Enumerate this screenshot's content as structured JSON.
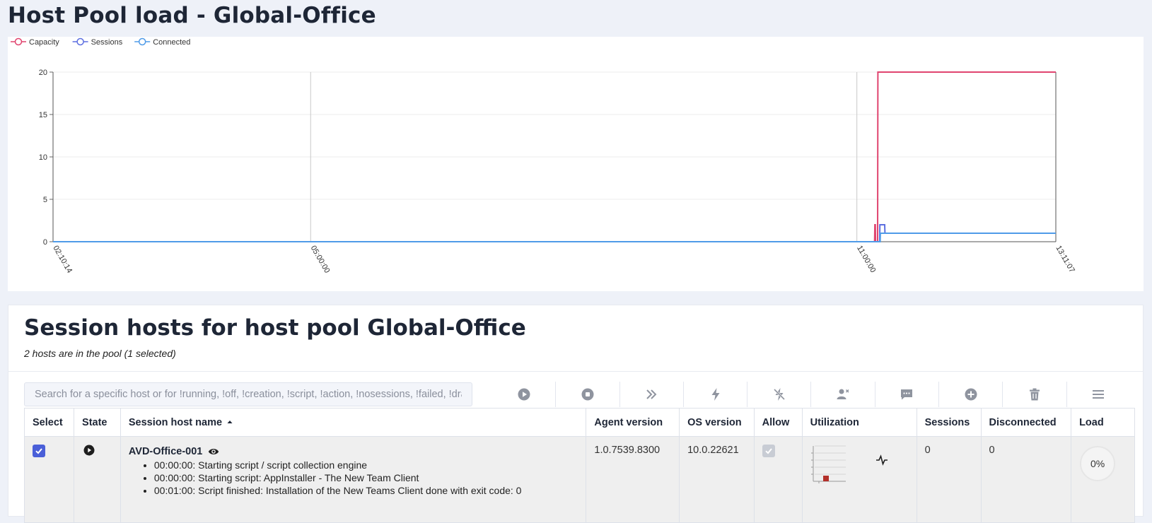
{
  "page": {
    "title": "Host Pool load - Global-Office"
  },
  "chart_data": {
    "type": "line",
    "legend": [
      {
        "name": "Capacity",
        "color": "#e0446f"
      },
      {
        "name": "Sessions",
        "color": "#5d6fe0"
      },
      {
        "name": "Connected",
        "color": "#4f9be8"
      }
    ],
    "legend_position": "top-left",
    "x_ticks": [
      "02:10:14",
      "05:00:00",
      "11:00:00",
      "13:11:07"
    ],
    "y_ticks": [
      "0",
      "5",
      "10",
      "15",
      "20"
    ],
    "ylim": [
      0,
      20
    ],
    "xlim_seconds": [
      7814,
      47467
    ],
    "grid": true,
    "series": [
      {
        "name": "Capacity",
        "color": "#e0446f",
        "points": [
          [
            7814,
            0
          ],
          [
            40300,
            0
          ],
          [
            40310,
            2
          ],
          [
            40330,
            2
          ],
          [
            40340,
            0
          ],
          [
            40420,
            0
          ],
          [
            40430,
            20
          ],
          [
            47467,
            20
          ]
        ]
      },
      {
        "name": "Sessions",
        "color": "#5d6fe0",
        "points": [
          [
            7814,
            0
          ],
          [
            40500,
            0
          ],
          [
            40510,
            2
          ],
          [
            40700,
            2
          ],
          [
            40710,
            1
          ],
          [
            47467,
            1
          ]
        ]
      },
      {
        "name": "Connected",
        "color": "#4f9be8",
        "points": [
          [
            7814,
            0
          ],
          [
            40520,
            0
          ],
          [
            40530,
            1
          ],
          [
            47467,
            1
          ]
        ]
      }
    ]
  },
  "hosts_panel": {
    "title": "Session hosts for host pool Global-Office",
    "subtitle": "2 hosts are in the pool (1 selected)",
    "search_placeholder": "Search for a specific host or for !running, !off, !creation, !script, !action, !nosessions, !failed, !drain",
    "toolbar": [
      {
        "name": "start-icon"
      },
      {
        "name": "stop-icon"
      },
      {
        "name": "fast-forward-icon"
      },
      {
        "name": "lightning-icon"
      },
      {
        "name": "lightning-off-icon"
      },
      {
        "name": "user-remove-icon"
      },
      {
        "name": "message-icon"
      },
      {
        "name": "add-icon"
      },
      {
        "name": "trash-icon"
      },
      {
        "name": "menu-icon"
      }
    ],
    "columns": {
      "select": "Select",
      "state": "State",
      "name": "Session host name",
      "agent": "Agent version",
      "os": "OS version",
      "allow": "Allow",
      "utilization": "Utilization",
      "sessions": "Sessions",
      "disconnected": "Disconnected",
      "load": "Load"
    },
    "sort": {
      "column": "Session host name",
      "direction": "ascending"
    },
    "rows": [
      {
        "selected": true,
        "state": "running",
        "name": "AVD-Office-001",
        "log": [
          "00:00:00: Starting script / script collection engine",
          "00:00:00: Starting script: AppInstaller - The New Team Client",
          "00:01:00: Script finished: Installation of the New Teams Client done with exit code: 0"
        ],
        "agent_version": "1.0.7539.8300",
        "os_version": "10.0.22621",
        "allow": true,
        "sessions": "0",
        "disconnected": "0",
        "load": "0%"
      }
    ]
  }
}
